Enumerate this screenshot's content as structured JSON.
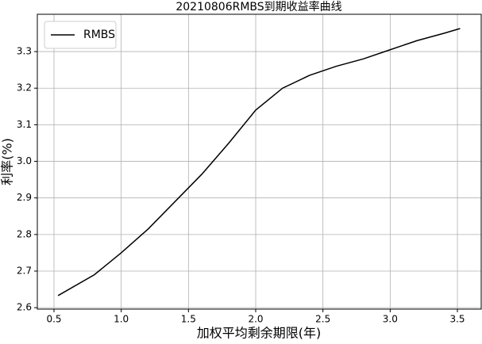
{
  "chart_data": {
    "type": "line",
    "title": "20210806RMBS到期收益率曲线",
    "x_label": "加权平均剩余期限(年)",
    "y_label": "利率(%)",
    "x": [
      0.53,
      0.8,
      1.0,
      1.2,
      1.4,
      1.6,
      1.8,
      2.0,
      2.2,
      2.4,
      2.6,
      2.8,
      3.0,
      3.2,
      3.4,
      3.52
    ],
    "series": [
      {
        "name": "RMBS",
        "color": "#000000",
        "values": [
          2.633,
          2.69,
          2.75,
          2.815,
          2.89,
          2.965,
          3.05,
          3.14,
          3.2,
          3.235,
          3.26,
          3.28,
          3.305,
          3.33,
          3.35,
          3.363
        ]
      }
    ],
    "xlim": [
      0.376,
      3.677
    ],
    "ylim": [
      2.596,
      3.402
    ],
    "xticks": [
      0.5,
      {
        "value": 1.0,
        "label": "1.0"
      },
      1.5,
      {
        "value": 2.0,
        "label": "2.0"
      },
      2.5,
      {
        "value": 3.0,
        "label": "3.0"
      },
      3.5
    ],
    "yticks": [
      2.6,
      2.7,
      2.8,
      2.9,
      {
        "value": 3.0,
        "label": "3.0"
      },
      3.1,
      3.2,
      3.3
    ],
    "grid": true,
    "legend": "upper-left"
  }
}
